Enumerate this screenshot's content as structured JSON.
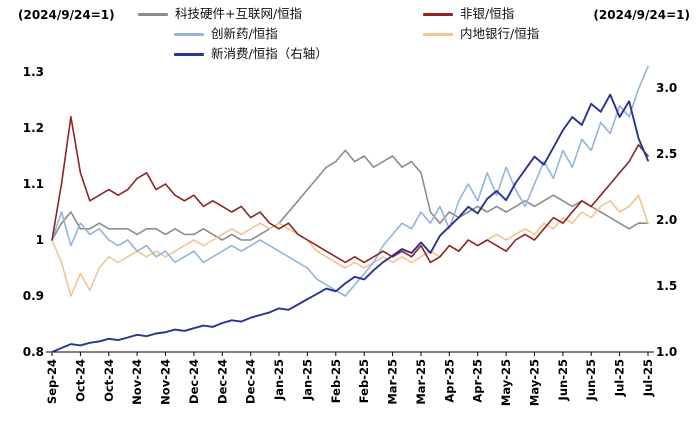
{
  "annotations": {
    "left": "(2024/9/24=1)",
    "right": "(2024/9/24=1)"
  },
  "legend": [
    {
      "label": "科技硬件+互联网/恒指",
      "color": "#8c8c8c"
    },
    {
      "label": "非银/恒指",
      "color": "#8e2424"
    },
    {
      "label": "创新药/恒指",
      "color": "#93b5da"
    },
    {
      "label": "内地银行/恒指",
      "color": "#f2c494"
    },
    {
      "label": "新消费/恒指（右轴）",
      "color": "#28348f"
    }
  ],
  "chart_data": {
    "type": "line",
    "title": "",
    "grid": false,
    "legend_position": "top",
    "x_tick_labels": [
      "Sep-24",
      "Oct-24",
      "Oct-24",
      "Nov-24",
      "Nov-24",
      "Dec-24",
      "Dec-24",
      "Dec-24",
      "Jan-25",
      "Jan-25",
      "Feb-25",
      "Feb-25",
      "Mar-25",
      "Mar-25",
      "Apr-25",
      "Apr-25",
      "May-25",
      "May-25",
      "Jun-25",
      "Jun-25",
      "Jul-25",
      "Jul-25"
    ],
    "y_left": {
      "min": 0.8,
      "max": 1.3,
      "ticks": [
        "0.8",
        "0.9",
        "1",
        "1.1",
        "1.2",
        "1.3"
      ]
    },
    "y_right": {
      "min": 1.0,
      "max": 3.0,
      "ticks": [
        "1.0",
        "1.5",
        "2.0",
        "2.5",
        "3.0"
      ]
    },
    "series": [
      {
        "name": "科技硬件+互联网/恒指",
        "axis": "left",
        "color": "#8c8c8c",
        "values": [
          1.0,
          1.03,
          1.05,
          1.02,
          1.02,
          1.03,
          1.02,
          1.02,
          1.02,
          1.01,
          1.02,
          1.02,
          1.01,
          1.02,
          1.01,
          1.01,
          1.02,
          1.01,
          1.0,
          1.01,
          1.0,
          1.0,
          1.01,
          1.02,
          1.03,
          1.05,
          1.07,
          1.09,
          1.11,
          1.13,
          1.14,
          1.16,
          1.14,
          1.15,
          1.13,
          1.14,
          1.15,
          1.13,
          1.14,
          1.12,
          1.05,
          1.03,
          1.05,
          1.04,
          1.05,
          1.06,
          1.05,
          1.06,
          1.05,
          1.06,
          1.07,
          1.06,
          1.07,
          1.08,
          1.07,
          1.06,
          1.07,
          1.06,
          1.05,
          1.04,
          1.03,
          1.02,
          1.03,
          1.03
        ]
      },
      {
        "name": "内地银行/恒指",
        "axis": "left",
        "color": "#f2c494",
        "values": [
          1.0,
          0.96,
          0.9,
          0.94,
          0.91,
          0.95,
          0.97,
          0.96,
          0.97,
          0.98,
          0.97,
          0.98,
          0.97,
          0.98,
          0.99,
          1.0,
          0.99,
          1.0,
          1.01,
          1.02,
          1.01,
          1.02,
          1.03,
          1.02,
          1.03,
          1.02,
          1.01,
          1.0,
          0.98,
          0.97,
          0.96,
          0.95,
          0.96,
          0.95,
          0.96,
          0.97,
          0.96,
          0.97,
          0.96,
          0.97,
          0.98,
          0.97,
          0.99,
          0.98,
          1.0,
          0.99,
          1.0,
          1.01,
          1.0,
          1.01,
          1.02,
          1.01,
          1.03,
          1.02,
          1.04,
          1.03,
          1.05,
          1.04,
          1.06,
          1.07,
          1.05,
          1.06,
          1.08,
          1.03
        ]
      },
      {
        "name": "创新药/恒指",
        "axis": "left",
        "color": "#93b5da",
        "values": [
          1.0,
          1.05,
          0.99,
          1.03,
          1.01,
          1.02,
          1.0,
          0.99,
          1.0,
          0.98,
          0.99,
          0.97,
          0.98,
          0.96,
          0.97,
          0.98,
          0.96,
          0.97,
          0.98,
          0.99,
          0.98,
          0.99,
          1.0,
          0.99,
          0.98,
          0.97,
          0.96,
          0.95,
          0.93,
          0.92,
          0.91,
          0.9,
          0.92,
          0.94,
          0.96,
          0.99,
          1.01,
          1.03,
          1.02,
          1.05,
          1.03,
          1.06,
          1.02,
          1.07,
          1.1,
          1.07,
          1.12,
          1.08,
          1.13,
          1.09,
          1.06,
          1.1,
          1.14,
          1.11,
          1.16,
          1.13,
          1.18,
          1.16,
          1.21,
          1.19,
          1.24,
          1.22,
          1.27,
          1.31
        ]
      },
      {
        "name": "非银/恒指",
        "axis": "left",
        "color": "#8e2424",
        "values": [
          1.0,
          1.1,
          1.22,
          1.12,
          1.07,
          1.08,
          1.09,
          1.08,
          1.09,
          1.11,
          1.12,
          1.09,
          1.1,
          1.08,
          1.07,
          1.08,
          1.06,
          1.07,
          1.06,
          1.05,
          1.06,
          1.04,
          1.05,
          1.03,
          1.02,
          1.03,
          1.01,
          1.0,
          0.99,
          0.98,
          0.97,
          0.96,
          0.97,
          0.96,
          0.97,
          0.98,
          0.97,
          0.98,
          0.97,
          0.99,
          0.96,
          0.97,
          0.99,
          0.98,
          1.0,
          0.99,
          1.0,
          0.99,
          0.98,
          1.0,
          1.01,
          1.0,
          1.02,
          1.04,
          1.03,
          1.05,
          1.07,
          1.06,
          1.08,
          1.1,
          1.12,
          1.14,
          1.17,
          1.15
        ]
      },
      {
        "name": "新消费/恒指（右轴）",
        "axis": "right",
        "color": "#28348f",
        "values": [
          1.0,
          1.03,
          1.06,
          1.05,
          1.07,
          1.08,
          1.1,
          1.09,
          1.11,
          1.13,
          1.12,
          1.14,
          1.15,
          1.17,
          1.16,
          1.18,
          1.2,
          1.19,
          1.22,
          1.24,
          1.23,
          1.26,
          1.28,
          1.3,
          1.33,
          1.32,
          1.36,
          1.4,
          1.44,
          1.48,
          1.46,
          1.52,
          1.57,
          1.55,
          1.62,
          1.68,
          1.73,
          1.78,
          1.75,
          1.83,
          1.75,
          1.88,
          1.95,
          2.02,
          2.1,
          2.05,
          2.16,
          2.22,
          2.15,
          2.28,
          2.38,
          2.48,
          2.42,
          2.55,
          2.68,
          2.78,
          2.72,
          2.88,
          2.82,
          2.95,
          2.78,
          2.9,
          2.62,
          2.45
        ]
      }
    ]
  }
}
